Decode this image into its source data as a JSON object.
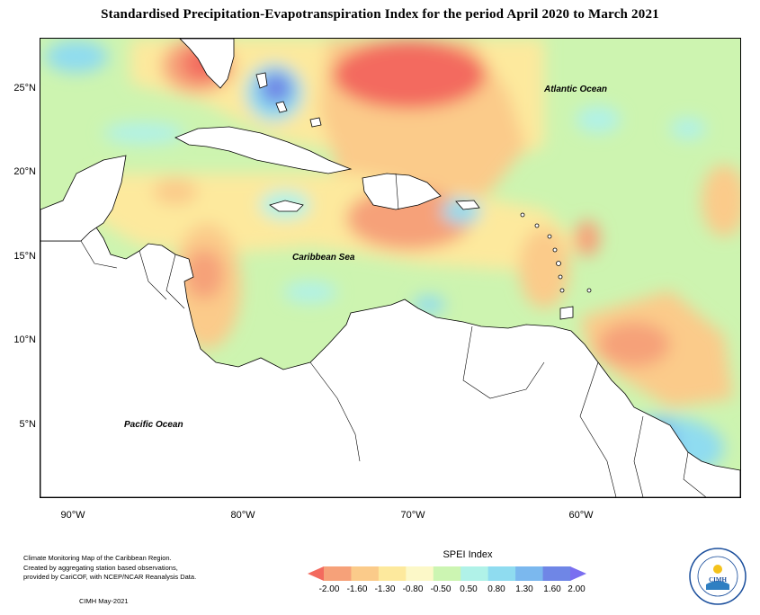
{
  "title": "Standardised Precipitation-Evapotranspiration Index for the period April 2020 to March 2021",
  "map": {
    "lat_labels": [
      "25°N",
      "20°N",
      "15°N",
      "10°N",
      "5°N"
    ],
    "lon_labels": [
      "90°W",
      "80°W",
      "70°W",
      "60°W"
    ],
    "ocean_labels": {
      "atlantic": "Atlantic Ocean",
      "caribbean": "Caribbean Sea",
      "pacific": "Pacific Ocean"
    }
  },
  "footer": {
    "line1": "Climate Monitoring Map of the Caribbean Region.",
    "line2": "Created by aggregating station based observations,",
    "line3": "provided by CariCOF, with NCEP/NCAR Reanalysis Data.",
    "date": "CIMH May-2021"
  },
  "legend": {
    "title": "SPEI Index",
    "ticks": [
      "-2.00",
      "-1.60",
      "-1.30",
      "-0.80",
      "-0.50",
      "0.50",
      "0.80",
      "1.30",
      "1.60",
      "2.00"
    ],
    "colors": [
      "#f36a5e",
      "#f6a179",
      "#fbcb8a",
      "#fde99d",
      "#fcf8c8",
      "#ccf5b2",
      "#b0f2e8",
      "#8fdcf0",
      "#7bb8ee",
      "#6f86e6",
      "#7a6ef0"
    ]
  },
  "logo": {
    "name": "CIMH"
  }
}
